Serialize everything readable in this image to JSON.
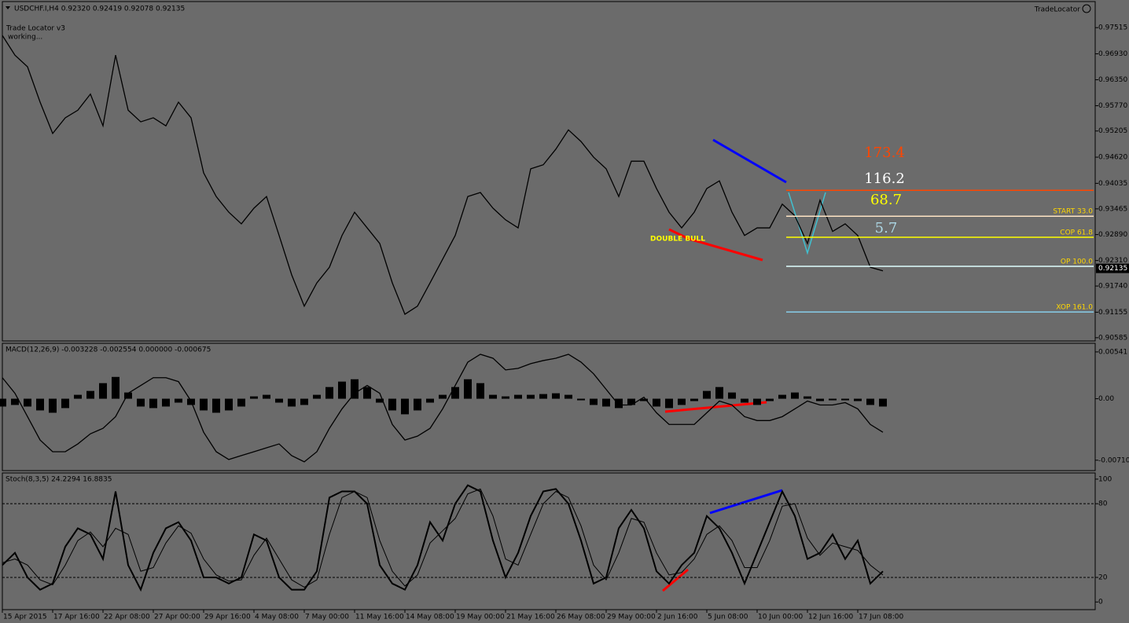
{
  "chart_data": [
    {
      "type": "line",
      "title": "USDCHF.I,H4  0.92320 0.92419 0.92078 0.92135",
      "notes": [
        "Trade Locator v3",
        "working...",
        "TradeLocator"
      ],
      "ylim": [
        0.9053,
        0.9808
      ],
      "yticks": [
        0.97515,
        {
          "value": 0.9693,
          "label": "0.96930"
        },
        {
          "value": 0.9635,
          "label": "0.96350"
        },
        {
          "value": 0.9577,
          "label": "0.95770"
        },
        0.95205,
        {
          "value": 0.9462,
          "label": "0.94620"
        },
        0.94035,
        0.93465,
        {
          "value": 0.9289,
          "label": "0.92890"
        },
        {
          "value": 0.9231,
          "label": "0.92310"
        },
        {
          "value": 0.9174,
          "label": "0.91740"
        },
        0.91155,
        0.90585
      ],
      "last_price": 0.92135,
      "series": [
        {
          "color": "#000000",
          "values": [
            0.9734,
            0.969,
            0.9664,
            0.9585,
            0.9515,
            0.955,
            0.9567,
            0.9603,
            0.9532,
            0.969,
            0.9567,
            0.9541,
            0.955,
            0.9532,
            0.9585,
            0.955,
            0.9427,
            0.9374,
            0.9339,
            0.9313,
            0.9348,
            0.9374,
            0.9287,
            0.9199,
            0.9129,
            0.9181,
            0.9216,
            0.9287,
            0.9339,
            0.9304,
            0.9269,
            0.9181,
            0.9111,
            0.9129,
            0.9181,
            0.9234,
            0.9287,
            0.9374,
            0.9383,
            0.9348,
            0.9322,
            0.9304,
            0.9436,
            0.9445,
            0.948,
            0.9523,
            0.9497,
            0.9462,
            0.9436,
            0.9374,
            0.9453,
            0.9453,
            0.9392,
            0.9339,
            0.9304,
            0.9339,
            0.9392,
            0.9409,
            0.9339,
            0.9287,
            0.9304,
            0.9304,
            0.9357,
            0.9331,
            0.9269,
            0.9366,
            0.9296,
            0.9313,
            0.9287,
            0.9216,
            0.9208
          ]
        }
      ],
      "levels": [
        {
          "value": 0.9388,
          "color": "#ff4500"
        },
        {
          "value": 0.933,
          "label": "START 33.0",
          "color": "#ffe4c4"
        },
        {
          "value": 0.9283,
          "label": "COP 61.8",
          "color": "#ffff00"
        },
        {
          "value": 0.9218,
          "label": "OP 100.0",
          "color": "#e0ffff"
        },
        {
          "value": 0.9116,
          "label": "XOP 161.0",
          "color": "#87ceeb"
        }
      ],
      "level_label_color": "#ffd700",
      "annotations": [
        {
          "text": "173.4",
          "color": "#ff4500"
        },
        {
          "text": "116.2",
          "color": "#ffffff"
        },
        {
          "text": "68.7",
          "color": "#ffff00"
        },
        {
          "text": "5.7",
          "color": "#add8e6"
        },
        {
          "text": "DOUBLE  BULL",
          "color": "#ffff00"
        }
      ]
    },
    {
      "type": "line",
      "title": "MACD(12,26,9) -0.003228 -0.002554 0.000000 -0.000675",
      "ylim": [
        -0.00821,
        0.00631
      ],
      "yticks": [
        0.00541,
        {
          "value": 0,
          "label": "0.00"
        },
        -0.007101
      ],
      "series": [
        {
          "type": "bar",
          "color": "#000000",
          "values": [
            -0.0009,
            -0.00072,
            -0.0009,
            -0.00135,
            -0.00162,
            -0.00108,
            0.00045,
            0.0009,
            0.0018,
            0.00252,
            0.00072,
            -0.0009,
            -0.00108,
            -0.0009,
            -0.00045,
            -0.00072,
            -0.00135,
            -0.00162,
            -0.00135,
            -0.0009,
            0.00027,
            0.00045,
            -0.00045,
            -0.0009,
            -0.00072,
            0.00045,
            0.00135,
            0.00198,
            0.00225,
            0.00135,
            -0.00045,
            -0.00135,
            -0.0018,
            -0.00135,
            -0.00045,
            0.00045,
            0.00135,
            0.00225,
            0.0018,
            0.00045,
            0.00027,
            0.00045,
            0.00045,
            0.00054,
            0.00063,
            0.00045,
            -0.00018,
            -0.00072,
            -0.0009,
            -0.00108,
            -0.00072,
            -0.00027,
            -0.0009,
            -0.00108,
            -0.00072,
            -0.00027,
            0.0009,
            0.00135,
            0.00072,
            -0.00045,
            -0.00072,
            -0.00027,
            0.00045,
            0.00072,
            0.00027,
            -0.00027,
            -0.00018,
            -0.00018,
            -0.00027,
            -0.00072,
            -0.0009
          ]
        },
        {
          "type": "line",
          "color": "#000000",
          "values": [
            0.00243,
            0.00063,
            -0.00207,
            -0.00477,
            -0.00612,
            -0.00612,
            -0.00522,
            -0.00405,
            -0.00342,
            -0.00207,
            0.00063,
            0.00153,
            0.00243,
            0.00243,
            0.00198,
            -0.00027,
            -0.00387,
            -0.00612,
            -0.00702,
            -0.00657,
            -0.00612,
            -0.00567,
            -0.00522,
            -0.00657,
            -0.00729,
            -0.00612,
            -0.00342,
            -0.00117,
            0.00063,
            0.00153,
            0.00063,
            -0.00297,
            -0.00477,
            -0.00432,
            -0.00342,
            -0.00117,
            0.00153,
            0.00423,
            0.00513,
            0.00468,
            0.00333,
            0.00351,
            0.00405,
            0.00441,
            0.00468,
            0.00513,
            0.00423,
            0.00288,
            0.00108,
            -0.00072,
            -0.00072,
            0.00018,
            -0.00162,
            -0.00297,
            -0.00297,
            -0.00297,
            -0.00162,
            -0.00027,
            -0.00072,
            -0.00207,
            -0.00252,
            -0.00252,
            -0.00207,
            -0.00117,
            -0.00027,
            -0.00072,
            -0.00072,
            -0.00045,
            -0.00117,
            -0.00297,
            -0.00387
          ]
        }
      ]
    },
    {
      "type": "line",
      "title": "Stoch(8,3,5) 24.2294 16.8835",
      "ylim": [
        -5.6,
        104.4
      ],
      "yticks": [
        100,
        80,
        20,
        0
      ],
      "dashed_levels": [
        80,
        20
      ],
      "categories": [
        "15 Apr 2015",
        null,
        null,
        null,
        "17 Apr 16:00",
        null,
        null,
        null,
        "22 Apr 08:00",
        null,
        null,
        null,
        "27 Apr 00:00",
        null,
        null,
        null,
        "29 Apr 16:00",
        null,
        null,
        null,
        "4 May 08:00",
        null,
        null,
        null,
        "7 May 00:00",
        null,
        null,
        null,
        "11 May 16:00",
        null,
        null,
        null,
        "14 May 08:00",
        null,
        null,
        null,
        "19 May 00:00",
        null,
        null,
        null,
        "21 May 16:00",
        null,
        null,
        null,
        "26 May 08:00",
        null,
        null,
        null,
        "29 May 00:00",
        null,
        null,
        null,
        "2 Jun 16:00",
        null,
        null,
        null,
        "5 Jun 08:00",
        null,
        null,
        null,
        "10 Jun 00:00",
        null,
        null,
        null,
        "12 Jun 16:00",
        null,
        null,
        null,
        "17 Jun 08:00",
        null,
        null
      ],
      "series": [
        {
          "color": "#000000",
          "width": 2,
          "values": [
            30,
            40,
            20,
            10,
            15,
            45,
            60,
            55,
            35,
            90,
            30,
            10,
            40,
            60,
            65,
            50,
            20,
            20,
            15,
            20,
            55,
            50,
            20,
            10,
            10,
            25,
            85,
            90,
            90,
            80,
            30,
            15,
            10,
            30,
            65,
            50,
            80,
            95,
            90,
            50,
            20,
            40,
            70,
            90,
            92,
            80,
            50,
            15,
            20,
            60,
            75,
            60,
            25,
            15,
            30,
            40,
            70,
            60,
            40,
            15,
            40,
            65,
            90,
            70,
            35,
            40,
            55,
            35,
            50,
            15,
            25
          ]
        },
        {
          "color": "#000000",
          "width": 1,
          "values": [
            32,
            35,
            30,
            18,
            14,
            30,
            50,
            57,
            45,
            60,
            55,
            25,
            28,
            48,
            62,
            56,
            35,
            22,
            17,
            18,
            38,
            52,
            35,
            18,
            12,
            18,
            55,
            85,
            90,
            85,
            50,
            25,
            13,
            22,
            48,
            58,
            68,
            88,
            92,
            70,
            35,
            30,
            55,
            80,
            90,
            85,
            62,
            30,
            18,
            40,
            68,
            65,
            40,
            22,
            24,
            35,
            55,
            62,
            50,
            28,
            28,
            50,
            78,
            80,
            52,
            38,
            48,
            45,
            42,
            30,
            22
          ]
        }
      ]
    }
  ]
}
